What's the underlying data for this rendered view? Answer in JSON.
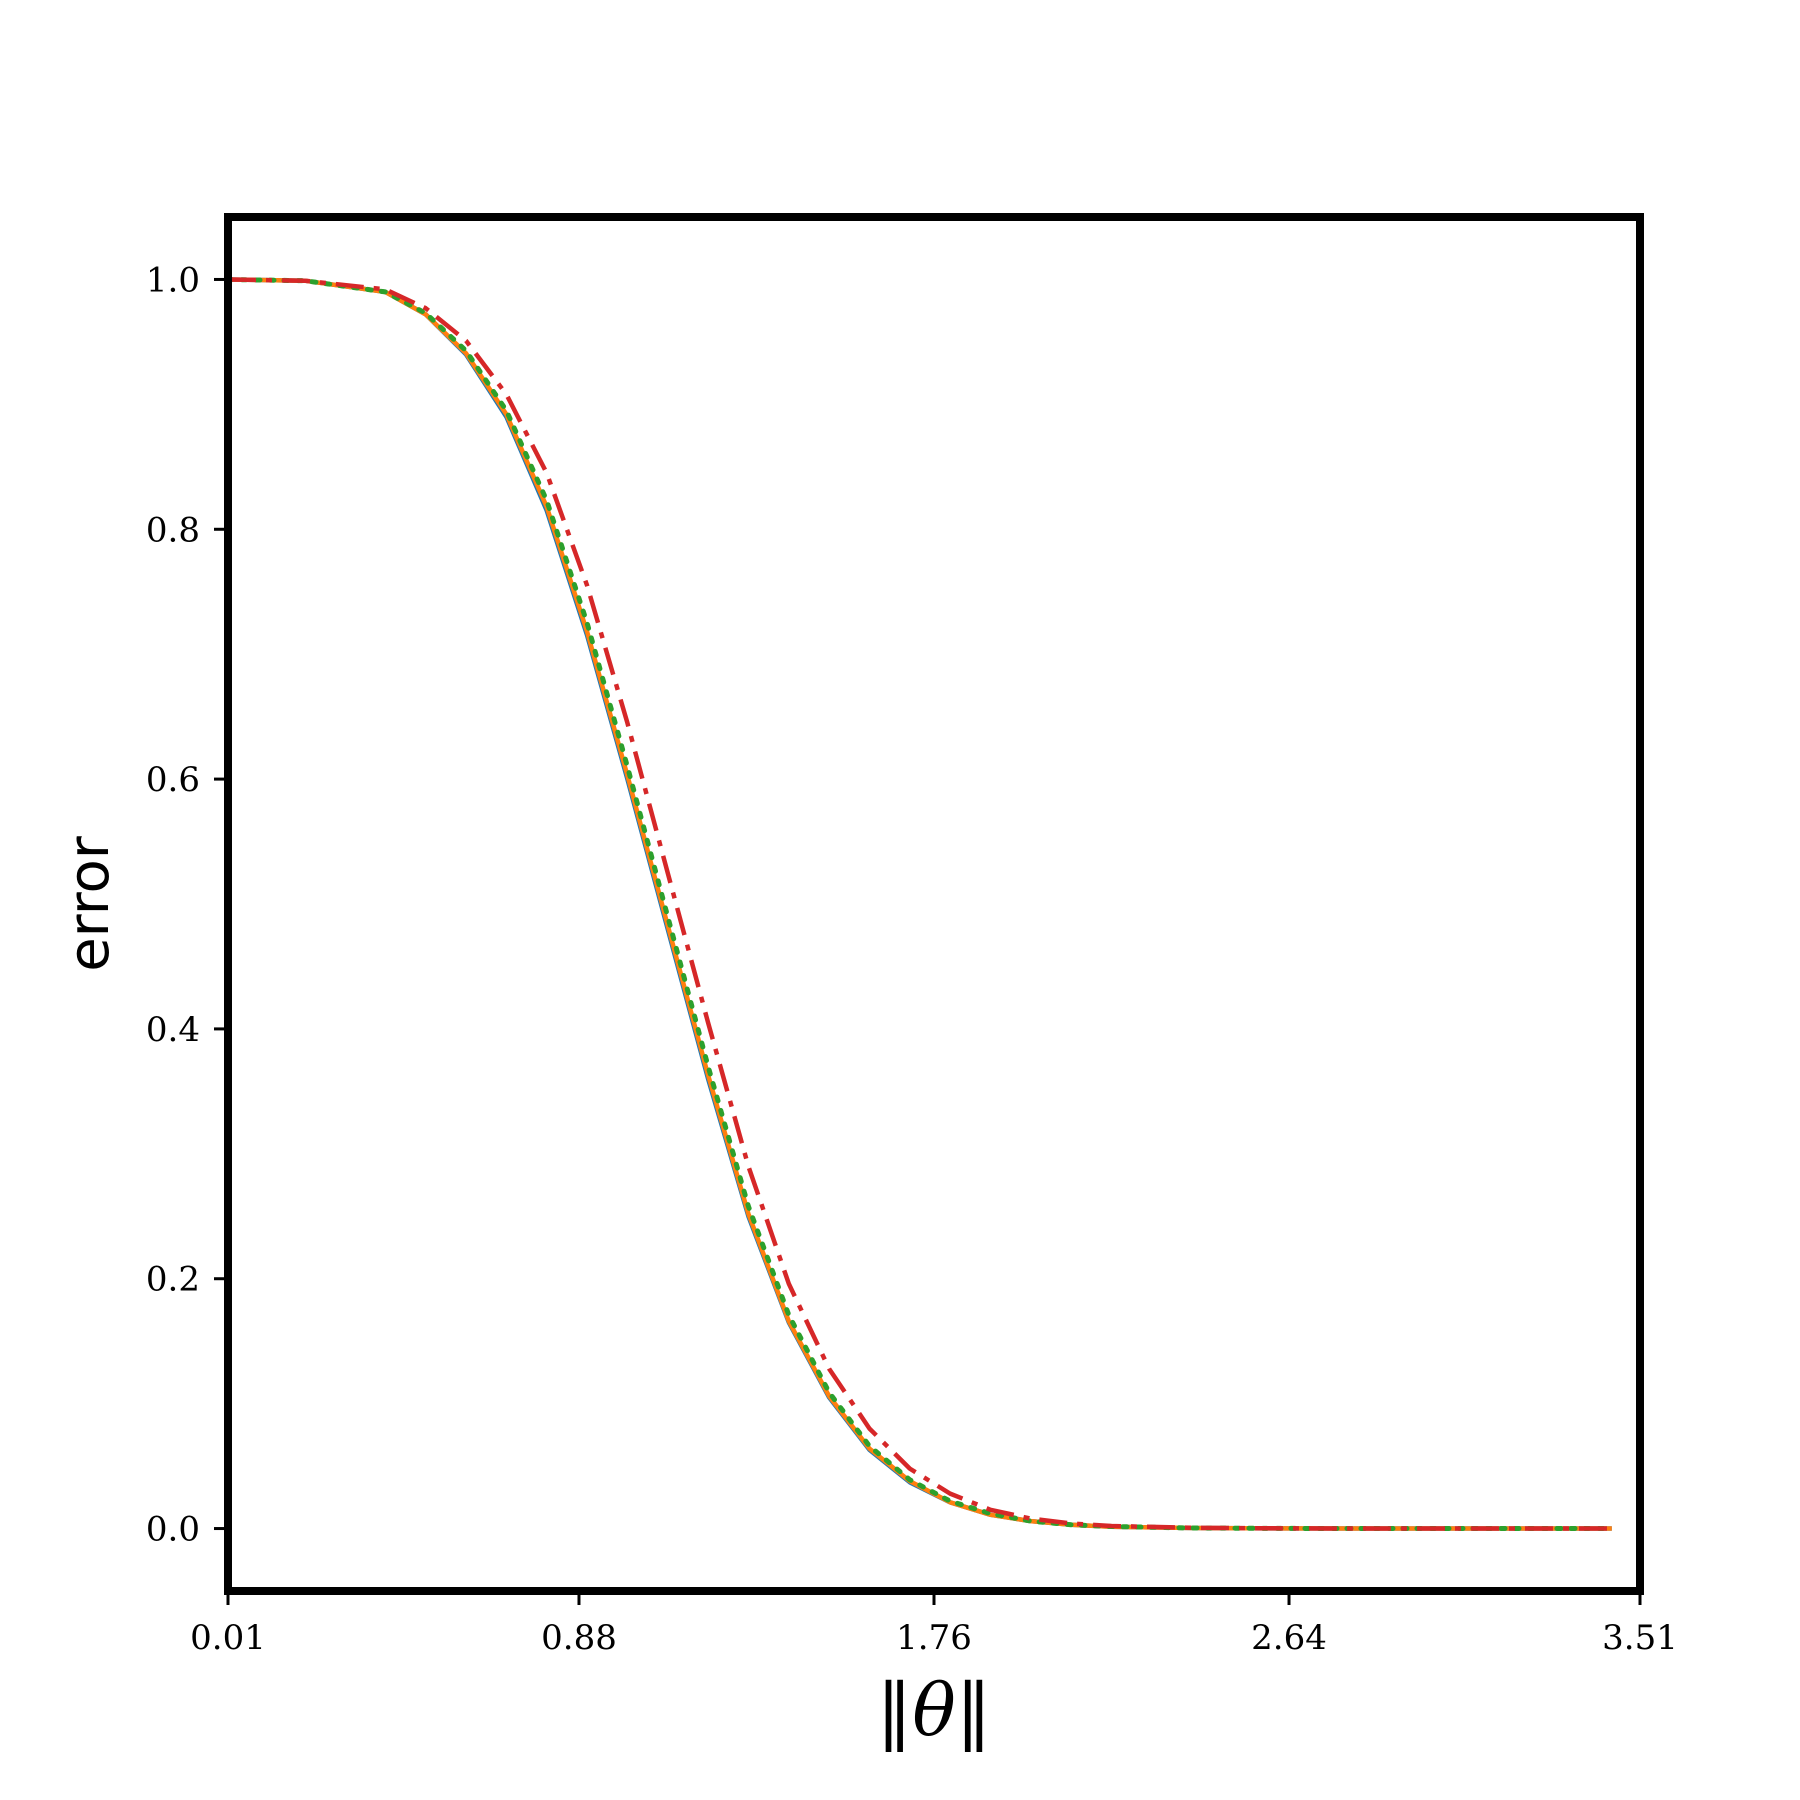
{
  "chart_data": {
    "type": "line",
    "title": "",
    "xlabel": "‖θ‖",
    "ylabel": "error",
    "xlim": [
      0.01,
      3.51
    ],
    "ylim": [
      -0.05,
      1.05
    ],
    "x_ticks": [
      "0.01",
      "0.88",
      "1.76",
      "2.64",
      "3.51"
    ],
    "y_ticks": [
      "0.0",
      "0.2",
      "0.4",
      "0.6",
      "0.8",
      "1.0"
    ],
    "grid": false,
    "legend": "none",
    "x": [
      0.01,
      0.2,
      0.4,
      0.5,
      0.6,
      0.7,
      0.8,
      0.9,
      1.0,
      1.1,
      1.2,
      1.3,
      1.4,
      1.5,
      1.6,
      1.7,
      1.8,
      1.9,
      2.0,
      2.1,
      2.2,
      2.4,
      2.6,
      2.8,
      3.0,
      3.2,
      3.44
    ],
    "series": [
      {
        "color": "#1f77b4",
        "dash": "solid",
        "values": [
          1.0,
          0.999,
          0.99,
          0.972,
          0.94,
          0.89,
          0.815,
          0.715,
          0.6,
          0.48,
          0.36,
          0.25,
          0.165,
          0.105,
          0.063,
          0.037,
          0.021,
          0.011,
          0.006,
          0.003,
          0.0015,
          0.0004,
          0.0001,
          0.0,
          0.0,
          0.0,
          0.0
        ]
      },
      {
        "color": "#ff7f0e",
        "dash": "solid",
        "values": [
          1.0,
          0.999,
          0.99,
          0.972,
          0.941,
          0.892,
          0.818,
          0.718,
          0.603,
          0.483,
          0.363,
          0.252,
          0.166,
          0.106,
          0.064,
          0.038,
          0.021,
          0.011,
          0.006,
          0.003,
          0.0015,
          0.0004,
          0.0001,
          0.0,
          0.0,
          0.0,
          0.0
        ]
      },
      {
        "color": "#2ca02c",
        "dash": "dotted",
        "values": [
          1.0,
          0.999,
          0.99,
          0.973,
          0.943,
          0.895,
          0.823,
          0.725,
          0.61,
          0.49,
          0.37,
          0.258,
          0.171,
          0.109,
          0.066,
          0.039,
          0.022,
          0.012,
          0.006,
          0.003,
          0.0016,
          0.0004,
          0.0001,
          0.0,
          0.0,
          0.0,
          0.0
        ]
      },
      {
        "color": "#d62728",
        "dash": "dashdot",
        "values": [
          1.0,
          0.999,
          0.992,
          0.977,
          0.951,
          0.908,
          0.845,
          0.755,
          0.645,
          0.525,
          0.405,
          0.29,
          0.196,
          0.128,
          0.08,
          0.048,
          0.028,
          0.015,
          0.008,
          0.004,
          0.002,
          0.0006,
          0.0002,
          0.0,
          0.0,
          0.0,
          0.0
        ]
      }
    ]
  }
}
